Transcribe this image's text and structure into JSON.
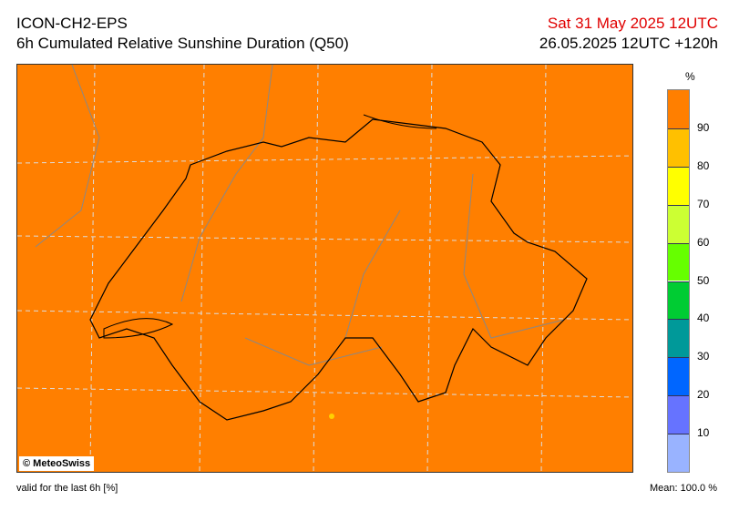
{
  "header": {
    "model": "ICON-CH2-EPS",
    "product": "6h Cumulated Relative Sunshine Duration (Q50)",
    "valid_time": "Sat 31 May 2025 12UTC",
    "run": "26.05.2025 12UTC +120h"
  },
  "map": {
    "copyright": "© MeteoSwiss",
    "field_color": "#ff7f00",
    "field_value_percent": 100
  },
  "legend": {
    "unit": "%",
    "ticks": [
      "90",
      "80",
      "70",
      "60",
      "50",
      "40",
      "30",
      "20",
      "10"
    ],
    "colors": [
      "#ff7f00",
      "#ffc000",
      "#ffff00",
      "#ccff33",
      "#66ff00",
      "#00cc33",
      "#009999",
      "#0066ff",
      "#6673ff",
      "#99b3ff"
    ]
  },
  "footer": {
    "valid_note": "valid for the last 6h [%]",
    "mean": "Mean:  100.0 %"
  }
}
